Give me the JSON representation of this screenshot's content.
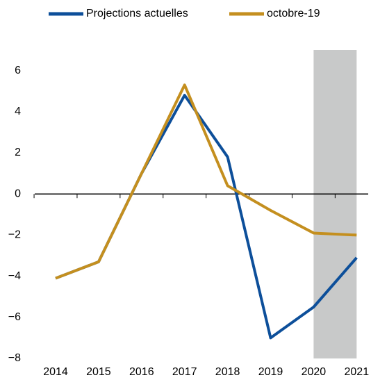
{
  "chart_data": {
    "type": "line",
    "categories": [
      "2014",
      "2015",
      "2016",
      "2017",
      "2018",
      "2019",
      "2020",
      "2021"
    ],
    "series": [
      {
        "name": "Projections actuelles",
        "color": "#0d4f9a",
        "values": [
          -4.1,
          -3.3,
          1.0,
          4.8,
          1.8,
          -7.0,
          -5.5,
          -3.1
        ]
      },
      {
        "name": "octobre-19",
        "color": "#c48f1f",
        "values": [
          -4.1,
          -3.3,
          1.0,
          5.3,
          0.4,
          -0.8,
          -1.9,
          -2.0
        ]
      }
    ],
    "ylim": [
      -8,
      7
    ],
    "yticks": [
      {
        "value": -8,
        "label": "−8"
      },
      {
        "value": -6,
        "label": "−6"
      },
      {
        "value": -4,
        "label": "−4"
      },
      {
        "value": -2,
        "label": "−2"
      },
      0,
      2,
      4,
      6
    ],
    "shade": [
      "2020",
      "2021"
    ],
    "shade_color": "#c8c9c9",
    "legend": "top"
  }
}
